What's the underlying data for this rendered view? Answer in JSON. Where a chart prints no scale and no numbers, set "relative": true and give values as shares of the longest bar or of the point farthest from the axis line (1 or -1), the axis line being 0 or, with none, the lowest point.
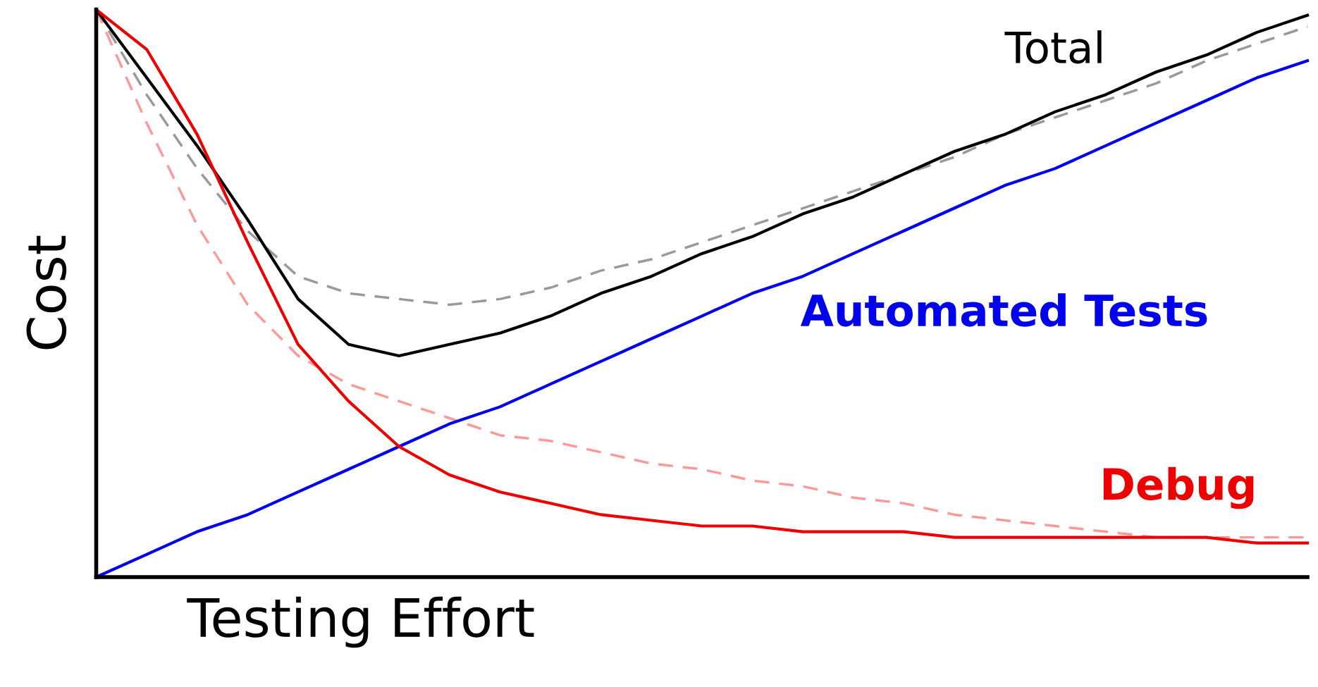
{
  "chart_data": {
    "type": "line",
    "relative": true,
    "xlabel": "Testing Effort",
    "ylabel": "Cost",
    "legend": false,
    "marker": "none",
    "categories": [
      null,
      null,
      null,
      null,
      null,
      null,
      null,
      null,
      null,
      null,
      null,
      null,
      null,
      null,
      null,
      null,
      null,
      null,
      null,
      null,
      null,
      null,
      null,
      null,
      null
    ],
    "series": [
      {
        "name": null,
        "color": "#999999",
        "line_style": "dashed",
        "values": [
          1.0,
          0.85,
          0.72,
          0.61,
          0.53,
          0.5,
          0.49,
          0.48,
          0.49,
          0.51,
          0.54,
          0.56,
          0.59,
          0.62,
          0.65,
          0.68,
          0.71,
          0.74,
          0.78,
          0.81,
          0.84,
          0.87,
          0.91,
          0.94,
          0.97
        ]
      },
      {
        "name": null,
        "color": "#ff9999",
        "line_style": "dashed",
        "values": [
          1.0,
          0.8,
          0.62,
          0.48,
          0.39,
          0.34,
          0.31,
          0.28,
          0.25,
          0.24,
          0.22,
          0.2,
          0.19,
          0.17,
          0.16,
          0.14,
          0.13,
          0.11,
          0.1,
          0.09,
          0.08,
          0.07,
          0.07,
          0.07,
          0.07
        ]
      },
      {
        "name": "Total",
        "color": "#000000",
        "line_style": "solid",
        "values": [
          1.0,
          0.88,
          0.76,
          0.63,
          0.49,
          0.41,
          0.39,
          0.41,
          0.43,
          0.46,
          0.5,
          0.53,
          0.57,
          0.6,
          0.64,
          0.67,
          0.71,
          0.75,
          0.78,
          0.82,
          0.85,
          0.89,
          0.92,
          0.96,
          0.99
        ]
      },
      {
        "name": "Automated Tests",
        "color": "#0000ee",
        "line_style": "solid",
        "values": [
          0,
          0.04,
          0.08,
          0.11,
          0.15,
          0.19,
          0.23,
          0.27,
          0.3,
          0.34,
          0.38,
          0.42,
          0.46,
          0.5,
          0.53,
          0.57,
          0.61,
          0.65,
          0.69,
          0.72,
          0.76,
          0.8,
          0.84,
          0.88,
          0.91
        ]
      },
      {
        "name": "Debug",
        "color": "#ee0000",
        "line_style": "solid",
        "values": [
          1.0,
          0.93,
          0.78,
          0.59,
          0.41,
          0.31,
          0.23,
          0.18,
          0.15,
          0.13,
          0.11,
          0.1,
          0.09,
          0.09,
          0.08,
          0.08,
          0.08,
          0.07,
          0.07,
          0.07,
          0.07,
          0.07,
          0.07,
          0.06,
          0.06
        ]
      }
    ]
  }
}
